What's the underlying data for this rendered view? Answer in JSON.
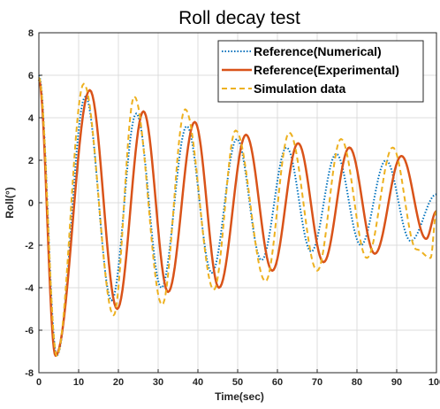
{
  "chart_data": {
    "type": "line",
    "title": "Roll decay test",
    "xlabel": "Time(sec)",
    "ylabel": "Roll(°)",
    "xlim": [
      0,
      100
    ],
    "ylim": [
      -8,
      8
    ],
    "xticks": [
      0,
      10,
      20,
      30,
      40,
      50,
      60,
      70,
      80,
      90,
      100
    ],
    "yticks": [
      -8,
      -6,
      -4,
      -2,
      0,
      2,
      4,
      6,
      8
    ],
    "grid": true,
    "legend_position": "top-right",
    "series": [
      {
        "name": "Reference(Numerical)",
        "color": "#0072BD",
        "style": "dotted",
        "x": [
          0,
          4.5,
          11.7,
          18.3,
          24.5,
          30.8,
          37.2,
          43.5,
          49.8,
          56.0,
          62.3,
          68.5,
          74.8,
          81.0,
          87.3,
          93.5,
          100
        ],
        "y": [
          6.0,
          -7.2,
          5.0,
          -4.6,
          4.2,
          -4.0,
          3.6,
          -3.3,
          3.0,
          -2.7,
          2.6,
          -2.3,
          2.3,
          -2.0,
          2.0,
          -1.8,
          0.4
        ]
      },
      {
        "name": "Reference(Experimental)",
        "color": "#D95319",
        "style": "solid",
        "x": [
          0,
          4.2,
          12.8,
          19.7,
          26.3,
          32.5,
          39.2,
          45.3,
          52.1,
          58.7,
          65.2,
          71.6,
          78.1,
          84.5,
          91.2,
          97.4,
          100
        ],
        "y": [
          5.8,
          -7.2,
          5.3,
          -5.0,
          4.3,
          -4.2,
          3.8,
          -4.0,
          3.2,
          -3.2,
          2.8,
          -2.8,
          2.6,
          -2.4,
          2.2,
          -1.7,
          -0.4
        ]
      },
      {
        "name": "Simulation data",
        "color": "#EDB120",
        "style": "dashed",
        "x": [
          0,
          4.5,
          11.3,
          18.8,
          24.0,
          31.0,
          36.8,
          44.0,
          49.5,
          57.0,
          63.0,
          70.0,
          76.0,
          82.5,
          89.0,
          95.0,
          98.5,
          100
        ],
        "y": [
          5.9,
          -7.2,
          5.6,
          -5.3,
          5.0,
          -4.8,
          4.4,
          -4.1,
          3.4,
          -3.7,
          3.3,
          -3.2,
          3.0,
          -2.6,
          2.6,
          -2.2,
          -2.6,
          -0.4
        ]
      }
    ]
  }
}
